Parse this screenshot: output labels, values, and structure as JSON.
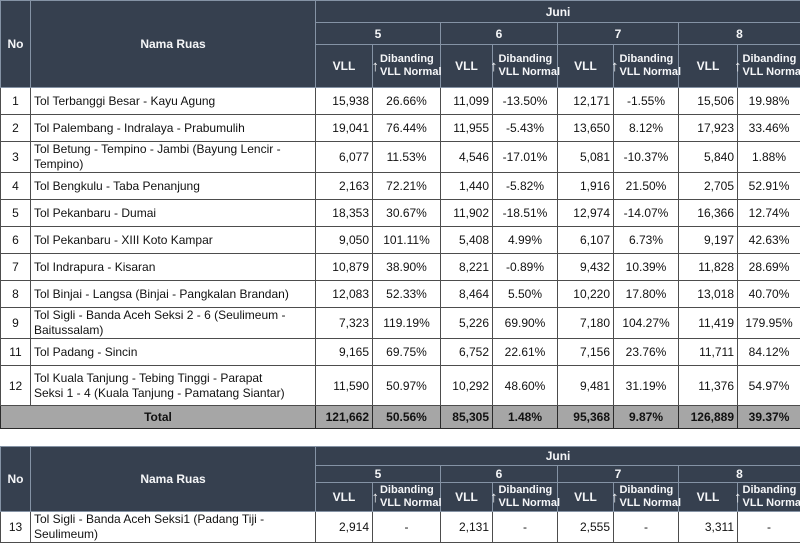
{
  "month": "Juni",
  "columns": {
    "no": "No",
    "nama_ruas": "Nama Ruas",
    "vll": "VLL",
    "dibanding_line1": "Dibanding",
    "dibanding_line2": "VLL Normal",
    "arrow": "↑"
  },
  "days": [
    "5",
    "6",
    "7",
    "8"
  ],
  "colors": {
    "header_bg": "#36404F",
    "header_text": "#F5F6F8",
    "total_bg": "#A6A6A6",
    "cell_bg": "#FFFFFF"
  },
  "table1": {
    "rows": [
      {
        "no": "1",
        "name": "Tol Terbanggi Besar - Kayu Agung",
        "values": [
          "15,938",
          "26.66%",
          "11,099",
          "-13.50%",
          "12,171",
          "-1.55%",
          "15,506",
          "19.98%"
        ]
      },
      {
        "no": "2",
        "name": "Tol Palembang - Indralaya - Prabumulih",
        "values": [
          "19,041",
          "76.44%",
          "11,955",
          "-5.43%",
          "13,650",
          "8.12%",
          "17,923",
          "33.46%"
        ]
      },
      {
        "no": "3",
        "name": "Tol Betung - Tempino - Jambi (Bayung Lencir - Tempino)",
        "values": [
          "6,077",
          "11.53%",
          "4,546",
          "-17.01%",
          "5,081",
          "-10.37%",
          "5,840",
          "1.88%"
        ]
      },
      {
        "no": "4",
        "name": "Tol Bengkulu - Taba Penanjung",
        "values": [
          "2,163",
          "72.21%",
          "1,440",
          "-5.82%",
          "1,916",
          "21.50%",
          "2,705",
          "52.91%"
        ]
      },
      {
        "no": "5",
        "name": "Tol Pekanbaru - Dumai",
        "values": [
          "18,353",
          "30.67%",
          "11,902",
          "-18.51%",
          "12,974",
          "-14.07%",
          "16,366",
          "12.74%"
        ]
      },
      {
        "no": "6",
        "name": "Tol Pekanbaru  - XIII Koto Kampar",
        "values": [
          "9,050",
          "101.11%",
          "5,408",
          "4.99%",
          "6,107",
          "6.73%",
          "9,197",
          "42.63%"
        ]
      },
      {
        "no": "7",
        "name": "Tol Indrapura - Kisaran",
        "values": [
          "10,879",
          "38.90%",
          "8,221",
          "-0.89%",
          "9,432",
          "10.39%",
          "11,828",
          "28.69%"
        ]
      },
      {
        "no": "8",
        "name": "Tol Binjai - Langsa (Binjai - Pangkalan Brandan)",
        "values": [
          "12,083",
          "52.33%",
          "8,464",
          "5.50%",
          "10,220",
          "17.80%",
          "13,018",
          "40.70%"
        ]
      },
      {
        "no": "9",
        "name": "Tol Sigli - Banda Aceh Seksi 2 - 6 (Seulimeum - Baitussalam)",
        "values": [
          "7,323",
          "119.19%",
          "5,226",
          "69.90%",
          "7,180",
          "104.27%",
          "11,419",
          "179.95%"
        ]
      },
      {
        "no": "11",
        "name": "Tol Padang - Sincin",
        "values": [
          "9,165",
          "69.75%",
          "6,752",
          "22.61%",
          "7,156",
          "23.76%",
          "11,711",
          "84.12%"
        ]
      },
      {
        "no": "12",
        "name": "Tol Kuala Tanjung - Tebing Tinggi - Parapat",
        "name2": "Seksi 1 - 4 (Kuala Tanjung - Pamatang Siantar)",
        "values": [
          "11,590",
          "50.97%",
          "10,292",
          "48.60%",
          "9,481",
          "31.19%",
          "11,376",
          "54.97%"
        ]
      }
    ],
    "total": {
      "label": "Total",
      "values": [
        "121,662",
        "50.56%",
        "85,305",
        "1.48%",
        "95,368",
        "9.87%",
        "126,889",
        "39.37%"
      ]
    }
  },
  "table2": {
    "rows": [
      {
        "no": "13",
        "name": "Tol Sigli - Banda Aceh Seksi1 (Padang Tiji - Seulimeum)",
        "values": [
          "2,914",
          "-",
          "2,131",
          "-",
          "2,555",
          "-",
          "3,311",
          "-"
        ]
      }
    ]
  }
}
